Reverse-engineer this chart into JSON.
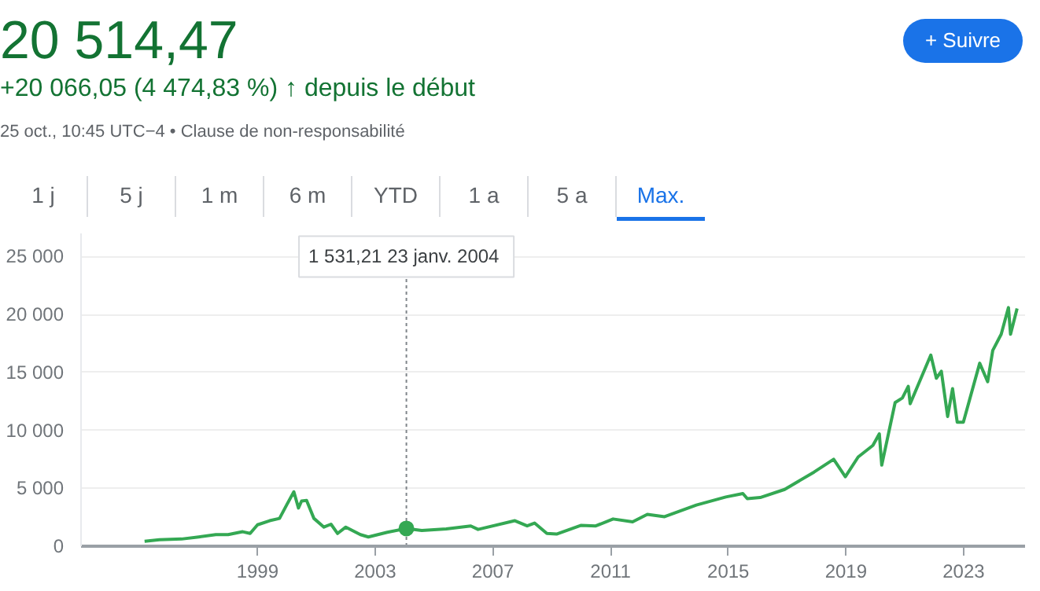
{
  "chart_data": {
    "type": "line",
    "title": "20 514,47",
    "subtitle": "+20 066,05 (4 474,83 %) ↑ depuis le début",
    "annotations": [
      "25 oct., 10:45 UTC−4 • Clause de non-responsabilité",
      "1 j",
      "5 j",
      "1 m",
      "6 m",
      "YTD",
      "1 a",
      "5 a",
      "Max.",
      "+ Suivre"
    ],
    "x": [
      "1995-03-01",
      "1995-09-01",
      "1996-06-01",
      "1997-01-01",
      "1997-08-01",
      "1998-01-01",
      "1998-07-01",
      "1998-10-01",
      "1999-01-01",
      "1999-06-01",
      "1999-10-01",
      "2000-01-01",
      "2000-03-27",
      "2000-05-23",
      "2000-07-01",
      "2000-09-01",
      "2000-12-01",
      "2001-04-04",
      "2001-07-01",
      "2001-09-21",
      "2002-01-01",
      "2002-07-01",
      "2002-10-08",
      "2003-06-01",
      "2004-01-23",
      "2004-08-01",
      "2005-06-01",
      "2006-04-01",
      "2006-07-01",
      "2007-10-01",
      "2008-03-01",
      "2008-06-01",
      "2008-11-01",
      "2009-03-01",
      "2010-01-01",
      "2010-07-01",
      "2011-02-01",
      "2011-10-01",
      "2012-04-01",
      "2012-11-01",
      "2013-12-01",
      "2014-12-01",
      "2015-07-01",
      "2015-08-25",
      "2016-02-01",
      "2016-12-01",
      "2017-12-01",
      "2018-08-01",
      "2018-12-24",
      "2019-06-01",
      "2019-12-01",
      "2020-02-19",
      "2020-03-20",
      "2020-09-02",
      "2020-12-01",
      "2021-02-12",
      "2021-03-08",
      "2021-11-19",
      "2022-01-27",
      "2022-03-30",
      "2022-06-16",
      "2022-08-16",
      "2022-10-13",
      "2022-12-28",
      "2023-07-19",
      "2023-10-26",
      "2023-12-28",
      "2024-04-11",
      "2024-07-10",
      "2024-08-05",
      "2024-10-25"
    ],
    "series": [
      {
        "color": "#34a853",
        "values": [
          430,
          560,
          620,
          800,
          1000,
          1000,
          1250,
          1100,
          1850,
          2200,
          2400,
          3600,
          4700,
          3300,
          3900,
          3950,
          2400,
          1650,
          1900,
          1100,
          1650,
          1000,
          800,
          1200,
          1531.21,
          1350,
          1500,
          1750,
          1450,
          2200,
          1750,
          2000,
          1100,
          1050,
          1800,
          1750,
          2350,
          2100,
          2750,
          2550,
          3550,
          4250,
          4550,
          4100,
          4200,
          4900,
          6400,
          7500,
          6000,
          7700,
          8700,
          9700,
          7000,
          12400,
          12800,
          13800,
          12300,
          16500,
          14500,
          15100,
          11200,
          13600,
          10700,
          10700,
          15800,
          14200,
          16900,
          18300,
          20600,
          18300,
          20514.47
        ]
      }
    ],
    "xlim": [
      "1993-01-01",
      "2025-02-01"
    ],
    "xticks": [
      "1999",
      "2003",
      "2007",
      "2011",
      "2015",
      "2019",
      "2023"
    ],
    "ylim": [
      0,
      27000
    ],
    "ref_lines": [
      {
        "axis": "x",
        "value": "2004-01-23",
        "label": "1 531,21  23 janv. 2004",
        "color": "#80868b",
        "line_style": "dotted"
      }
    ],
    "yticks": [
      {
        "value": 0,
        "label": "0"
      },
      {
        "value": 5000,
        "label": "5 000"
      },
      {
        "value": 10000,
        "label": "10 000"
      },
      {
        "value": 15000,
        "label": "15 000"
      },
      {
        "value": 20000,
        "label": "20 000"
      },
      {
        "value": 25000,
        "label": "25 000"
      }
    ],
    "grid": "y",
    "marker": "none",
    "line_style": "solid"
  }
}
